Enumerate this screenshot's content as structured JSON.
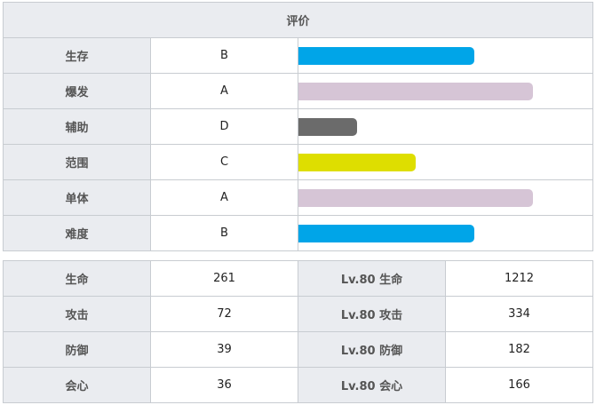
{
  "rating": {
    "title": "评价",
    "rows": [
      {
        "label": "生存",
        "grade": "B",
        "level": 0.75,
        "color": "#00a5e8"
      },
      {
        "label": "爆发",
        "grade": "A",
        "level": 1.0,
        "color": "#d6c5d6"
      },
      {
        "label": "辅助",
        "grade": "D",
        "level": 0.25,
        "color": "#6b6b6b"
      },
      {
        "label": "范围",
        "grade": "C",
        "level": 0.5,
        "color": "#dede00"
      },
      {
        "label": "单体",
        "grade": "A",
        "level": 1.0,
        "color": "#d6c5d6"
      },
      {
        "label": "难度",
        "grade": "B",
        "level": 0.75,
        "color": "#00a5e8"
      }
    ]
  },
  "stats": {
    "rows": [
      {
        "label": "生命",
        "value": "261",
        "lv_label": "Lv.80 生命",
        "lv_value": "1212"
      },
      {
        "label": "攻击",
        "value": "72",
        "lv_label": "Lv.80 攻击",
        "lv_value": "334"
      },
      {
        "label": "防御",
        "value": "39",
        "lv_label": "Lv.80 防御",
        "lv_value": "182"
      },
      {
        "label": "会心",
        "value": "36",
        "lv_label": "Lv.80 会心",
        "lv_value": "166"
      }
    ]
  }
}
